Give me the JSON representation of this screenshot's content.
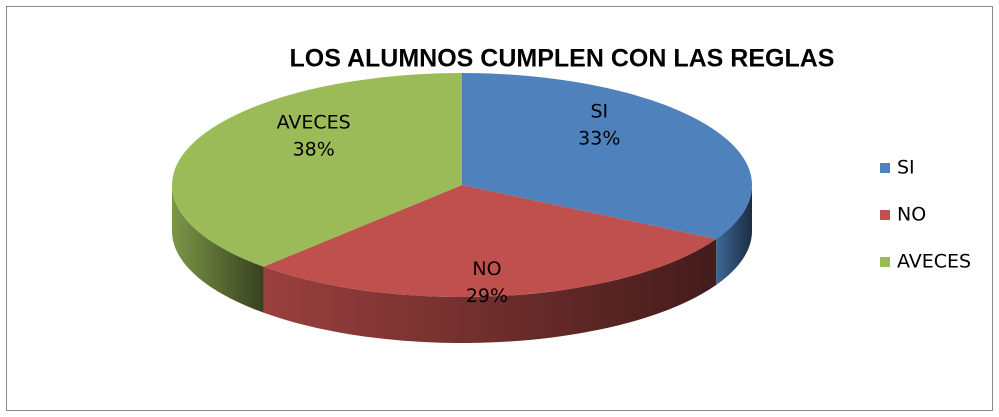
{
  "chart_data": {
    "type": "pie",
    "title": "LOS ALUMNOS CUMPLEN CON LAS REGLAS",
    "categories": [
      "SI",
      "NO",
      "AVECES"
    ],
    "values": [
      33,
      29,
      38
    ],
    "value_labels": [
      "33%",
      "29%",
      "38%"
    ],
    "colors": [
      "#4f81bd",
      "#c0504d",
      "#9bbb59"
    ],
    "legend": "right"
  }
}
